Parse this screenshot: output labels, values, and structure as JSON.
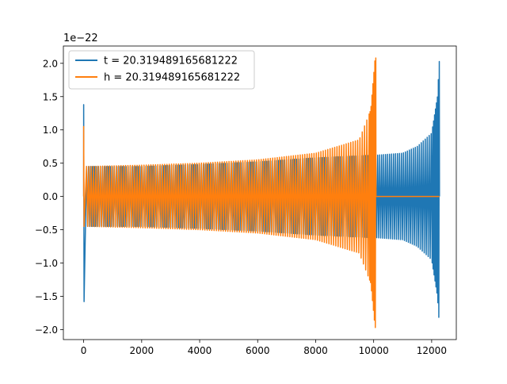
{
  "chart_data": {
    "type": "line",
    "title": "",
    "xlabel": "",
    "ylabel": "",
    "y_offset_label": "1e−22",
    "xlim": [
      -700,
      12850
    ],
    "ylim": [
      -2.15,
      2.26
    ],
    "x_ticks": [
      0,
      2000,
      4000,
      6000,
      8000,
      10000,
      12000
    ],
    "x_tick_labels": [
      "0",
      "2000",
      "4000",
      "6000",
      "8000",
      "10000",
      "12000"
    ],
    "y_ticks": [
      -2.0,
      -1.5,
      -1.0,
      -0.5,
      0.0,
      0.5,
      1.0,
      1.5,
      2.0
    ],
    "y_tick_labels": [
      "−2.0",
      "−1.5",
      "−1.0",
      "−0.5",
      "0.0",
      "0.5",
      "1.0",
      "1.5",
      "2.0"
    ],
    "grid": false,
    "legend_position": "upper-left",
    "series": [
      {
        "name": "t = 20.319489165681222",
        "color": "#1f77b4",
        "description": "chirp oscillation, amplitude growing toward merger",
        "initial_spike": {
          "x": 0,
          "max": 1.38,
          "min": -1.58
        },
        "envelope": {
          "x": [
            100,
            2000,
            4000,
            6000,
            8000,
            10000,
            10100,
            11000,
            11500,
            12000,
            12200,
            12270
          ],
          "amplitude": [
            0.45,
            0.45,
            0.48,
            0.52,
            0.58,
            0.62,
            0.62,
            0.65,
            0.75,
            0.95,
            1.5,
            2.08
          ],
          "min_amplitude": [
            0.45,
            0.45,
            0.48,
            0.52,
            0.58,
            0.62,
            0.62,
            0.65,
            0.75,
            0.95,
            1.5,
            1.97
          ]
        },
        "end_x": 12270
      },
      {
        "name": "h = 20.319489165681222",
        "color": "#ff7f0e",
        "description": "same chirp shifted earlier, zero after x=10080",
        "initial_spike": {
          "x": 0,
          "max": 1.05,
          "min": -0.45
        },
        "envelope": {
          "x": [
            100,
            2000,
            4000,
            6000,
            8000,
            9500,
            9900,
            10050,
            10080
          ],
          "amplitude": [
            0.45,
            0.47,
            0.5,
            0.55,
            0.65,
            0.85,
            1.3,
            2.08,
            2.08
          ],
          "min_amplitude": [
            0.45,
            0.47,
            0.5,
            0.55,
            0.65,
            0.85,
            1.3,
            1.97,
            1.97
          ]
        },
        "end_x": 10080,
        "flat_after": {
          "from": 10080,
          "to": 12270,
          "value": 0.0
        }
      }
    ]
  }
}
